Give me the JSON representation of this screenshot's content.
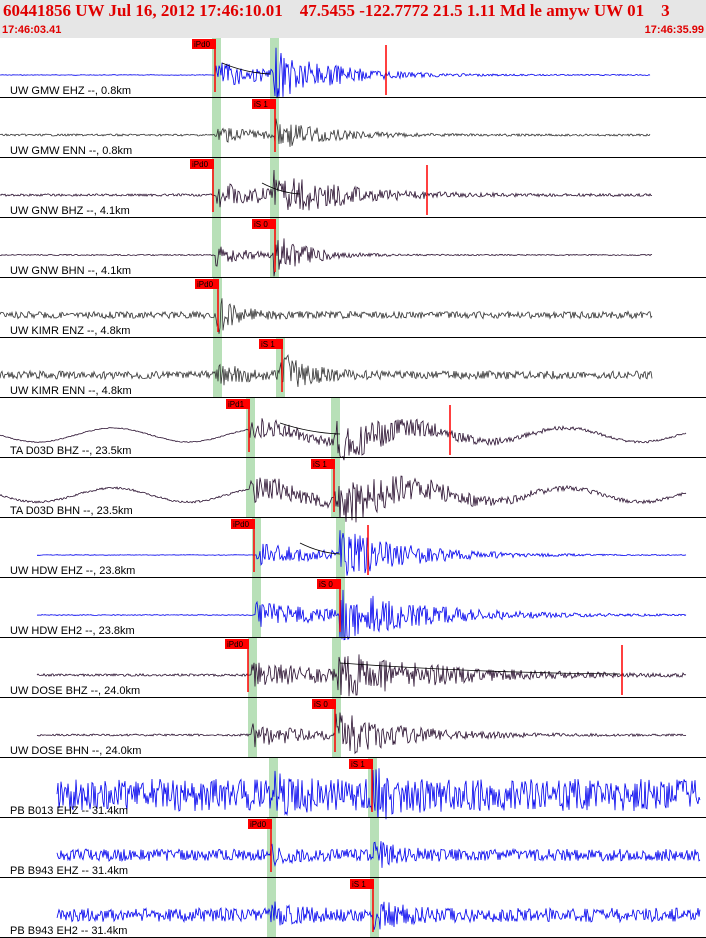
{
  "header": {
    "title": "60441856 UW Jul 16, 2012 17:46:10.01    47.5455 -122.7772 21.5 1.11 Md le amyw UW 01    3",
    "time_start": "17:46:03.41",
    "time_end": "17:46:35.99"
  },
  "colors": {
    "header_bg": "#e6e6e6",
    "title": "#e00000",
    "trace_blue": "#0000ee",
    "trace_dark": "#2a1030",
    "trace_gray": "#333333",
    "pick": "#ff0000",
    "pick_window": "#b8e0b8"
  },
  "traces": [
    {
      "label": "UW GMW EHZ --, 0.8km",
      "color": "blue",
      "pick": "iPd0",
      "pick_type": "P"
    },
    {
      "label": "UW GMW ENN --, 0.8km",
      "color": "gray",
      "pick": "iS 1",
      "pick_type": "S"
    },
    {
      "label": "UW GNW BHZ --, 4.1km",
      "color": "dark",
      "pick": "iPd0",
      "pick_type": "P"
    },
    {
      "label": "UW GNW BHN --, 4.1km",
      "color": "dark",
      "pick": "iS 0",
      "pick_type": "S"
    },
    {
      "label": "UW KIMR ENZ --, 4.8km",
      "color": "gray",
      "pick": "iPd0",
      "pick_type": "P"
    },
    {
      "label": "UW KIMR ENN --, 4.8km",
      "color": "gray",
      "pick": "iS 1",
      "pick_type": "S"
    },
    {
      "label": "TA D03D BHZ --, 23.5km",
      "color": "dark",
      "pick": "iPd1",
      "pick_type": "P"
    },
    {
      "label": "TA D03D BHN --, 23.5km",
      "color": "dark",
      "pick": "iS 1",
      "pick_type": "S"
    },
    {
      "label": "UW HDW EHZ --, 23.8km",
      "color": "blue",
      "pick": "iPd0",
      "pick_type": "P"
    },
    {
      "label": "UW HDW EH2 --, 23.8km",
      "color": "blue",
      "pick": "iS 0",
      "pick_type": "S"
    },
    {
      "label": "UW DOSE BHZ --, 24.0km",
      "color": "dark",
      "pick": "iPd0",
      "pick_type": "P"
    },
    {
      "label": "UW DOSE BHN --, 24.0km",
      "color": "dark",
      "pick": "iS 0",
      "pick_type": "S"
    },
    {
      "label": "PB B013 EHZ -- 31.4km",
      "color": "blue",
      "pick": "iS 1",
      "pick_type": "S"
    },
    {
      "label": "PB B943 EHZ -- 31.4km",
      "color": "blue",
      "pick": "iPd0",
      "pick_type": "P"
    },
    {
      "label": "PB B943 EH2 -- 31.4km",
      "color": "blue",
      "pick": "iS 1",
      "pick_type": "S"
    }
  ]
}
